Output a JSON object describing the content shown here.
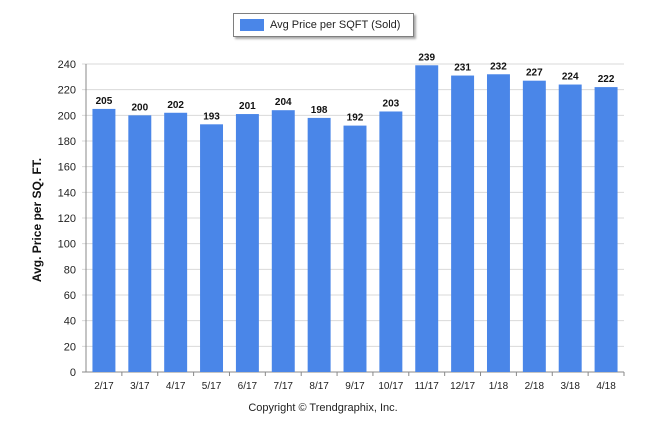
{
  "legend": {
    "label": "Avg Price per SQFT (Sold)"
  },
  "footer": {
    "copyright": "Copyright © Trendgraphix, Inc."
  },
  "colors": {
    "bar": "#4a86e8",
    "grid": "#d9d9d9",
    "axis": "#888888"
  },
  "chart_data": {
    "type": "bar",
    "title": "",
    "xlabel": "",
    "ylabel": "Avg. Price per SQ. FT.",
    "categories": [
      "2/17",
      "3/17",
      "4/17",
      "5/17",
      "6/17",
      "7/17",
      "8/17",
      "9/17",
      "10/17",
      "11/17",
      "12/17",
      "1/18",
      "2/18",
      "3/18",
      "4/18"
    ],
    "series": [
      {
        "name": "Avg Price per SQFT (Sold)",
        "values": [
          205,
          200,
          202,
          193,
          201,
          204,
          198,
          192,
          203,
          239,
          231,
          232,
          227,
          224,
          222
        ]
      }
    ],
    "ylim": [
      0,
      240
    ],
    "yticks": [
      0,
      20,
      40,
      60,
      80,
      100,
      120,
      140,
      160,
      180,
      200,
      220,
      240
    ],
    "grid": true,
    "legend_position": "top"
  }
}
